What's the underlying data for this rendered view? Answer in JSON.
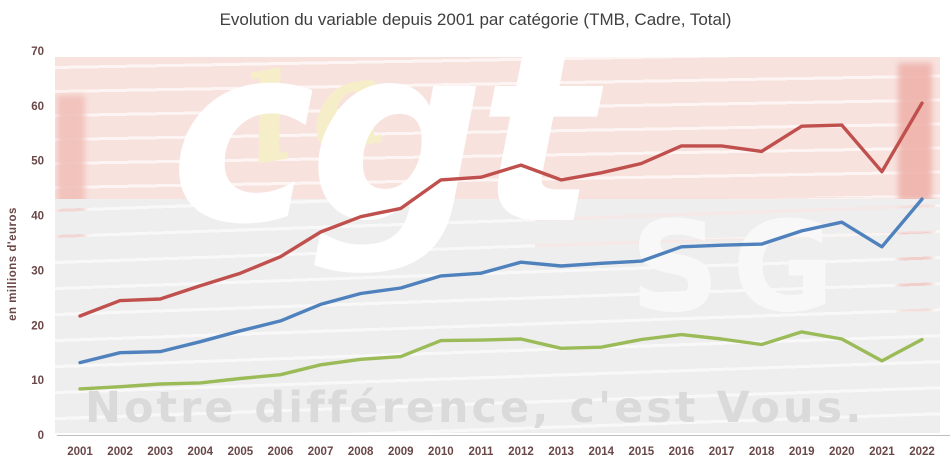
{
  "chart": {
    "title": "Evolution du variable depuis 2001 par catégorie (TMB, Cadre, Total)",
    "ylabel": "en millions d'euros"
  },
  "watermark": {
    "script_word": "la",
    "brand_word": "cgt",
    "brand_sub": "SG",
    "slogan": "Notre différence, c'est Vous."
  },
  "chart_data": {
    "type": "line",
    "title": "Evolution du variable depuis 2001 par catégorie (TMB, Cadre, Total)",
    "xlabel": "",
    "ylabel": "en millions d'euros",
    "ylim": [
      0,
      70
    ],
    "yticks": [
      0,
      10,
      20,
      30,
      40,
      50,
      60,
      70
    ],
    "grid": false,
    "legend_position": "none",
    "x": [
      "2001",
      "2002",
      "2003",
      "2004",
      "2005",
      "2006",
      "2007",
      "2008",
      "2009",
      "2010",
      "2011",
      "2012",
      "2013",
      "2014",
      "2015",
      "2016",
      "2017",
      "2018",
      "2019",
      "2020",
      "2021",
      "2022"
    ],
    "series": [
      {
        "name": "TMB",
        "color": "#4f81bd",
        "values": [
          13.2,
          15,
          15.2,
          17,
          19,
          20.8,
          23.8,
          25.8,
          26.8,
          29,
          29.5,
          31.5,
          30.8,
          31.3,
          31.7,
          34.3,
          34.6,
          34.8,
          37.2,
          38.8,
          34.3,
          43
        ]
      },
      {
        "name": "Cadre",
        "color": "#9bbb59",
        "values": [
          8.4,
          8.8,
          9.3,
          9.5,
          10.3,
          11,
          12.8,
          13.8,
          14.3,
          17.2,
          17.3,
          17.5,
          15.8,
          16,
          17.4,
          18.3,
          17.5,
          16.5,
          18.8,
          17.5,
          13.5,
          17.4
        ]
      },
      {
        "name": "Total",
        "color": "#c0504d",
        "values": [
          21.7,
          24.5,
          24.8,
          27.2,
          29.5,
          32.5,
          37,
          39.8,
          41.3,
          46.5,
          47,
          49.2,
          46.5,
          47.8,
          49.5,
          52.7,
          52.7,
          51.7,
          56.3,
          56.5,
          48,
          60.5
        ]
      }
    ],
    "colors": {
      "axis_text": "#6b4848",
      "title_text": "#3f3f3f",
      "axis_line": "#bfbfbf"
    }
  }
}
